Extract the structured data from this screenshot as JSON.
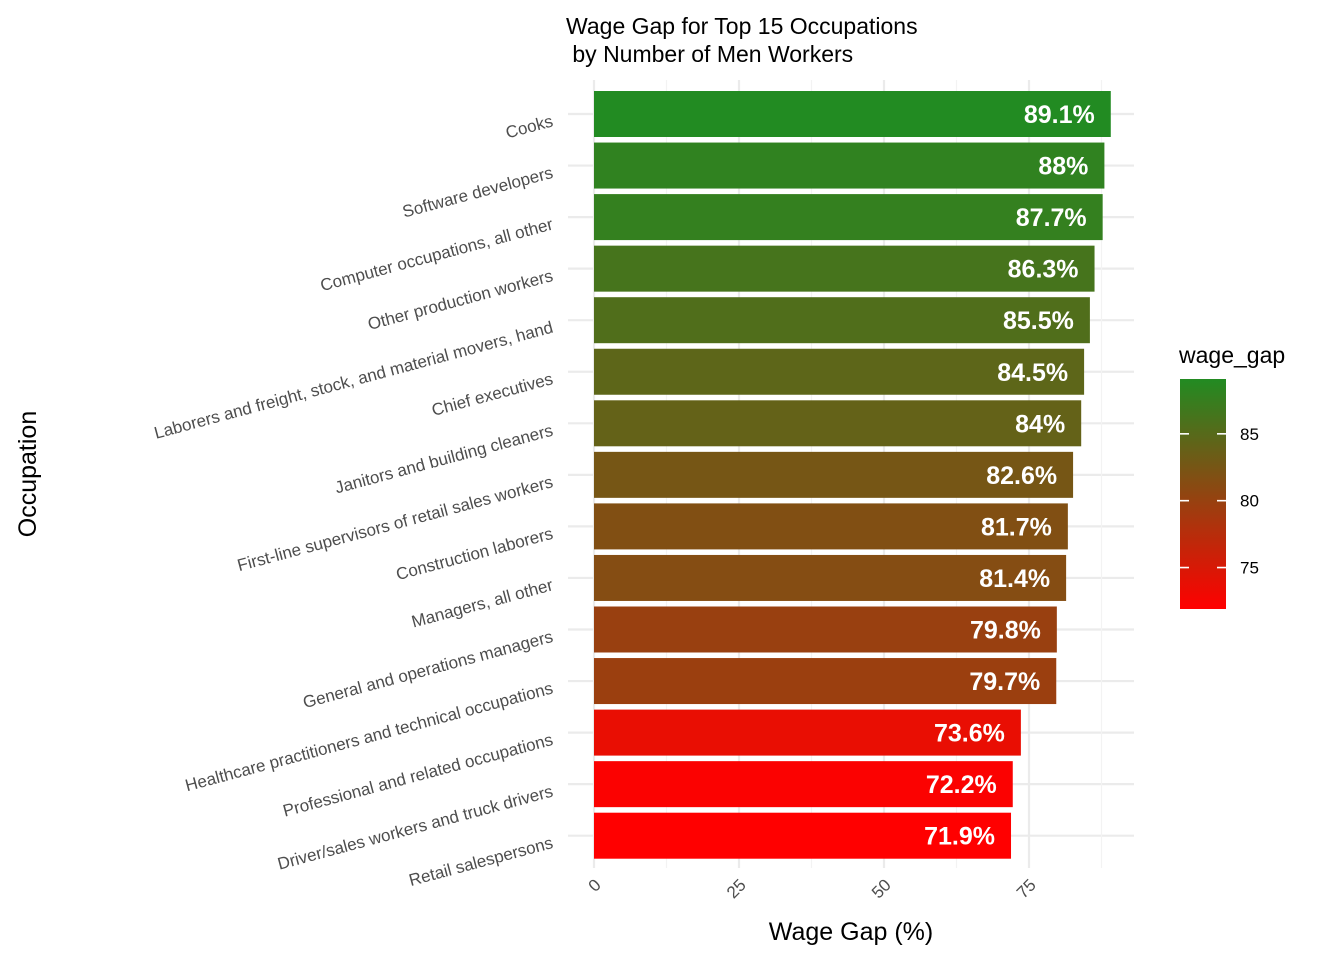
{
  "chart_data": {
    "type": "bar",
    "orientation": "horizontal",
    "title": "Wage Gap for Top 15 Occupations\n by Number of Men Workers",
    "xlabel": "Wage Gap (%)",
    "ylabel": "Occupation",
    "xlim": [
      0,
      93
    ],
    "x_ticks": [
      0,
      25,
      50,
      75
    ],
    "x_tick_labels": [
      "0",
      "25",
      "50",
      "75"
    ],
    "categories": [
      "Cooks",
      "Software developers",
      "Computer occupations, all other",
      "Other production workers",
      "Laborers and freight, stock, and material movers, hand",
      "Chief executives",
      "Janitors and building cleaners",
      "First-line supervisors of retail sales workers",
      "Construction laborers",
      "Managers, all other",
      "General and operations managers",
      "Healthcare practitioners and technical occupations",
      "Professional and related occupations",
      "Driver/sales workers and truck drivers",
      "Retail salespersons"
    ],
    "values": [
      89.1,
      88,
      87.7,
      86.3,
      85.5,
      84.5,
      84,
      82.6,
      81.7,
      81.4,
      79.8,
      79.7,
      73.6,
      72.2,
      71.9
    ],
    "data_labels": [
      "89.1%",
      "88%",
      "87.7%",
      "86.3%",
      "85.5%",
      "84.5%",
      "84%",
      "82.6%",
      "81.7%",
      "81.4%",
      "79.8%",
      "79.7%",
      "73.6%",
      "72.2%",
      "71.9%"
    ],
    "color_scale": {
      "title": "wage_gap",
      "low_color": "#ff0000",
      "high_color": "#228b22",
      "domain": [
        71.9,
        89.1
      ],
      "ticks": [
        75,
        80,
        85
      ],
      "tick_labels": [
        "75",
        "80",
        "85"
      ]
    },
    "legend_position": "right",
    "grid": true
  }
}
